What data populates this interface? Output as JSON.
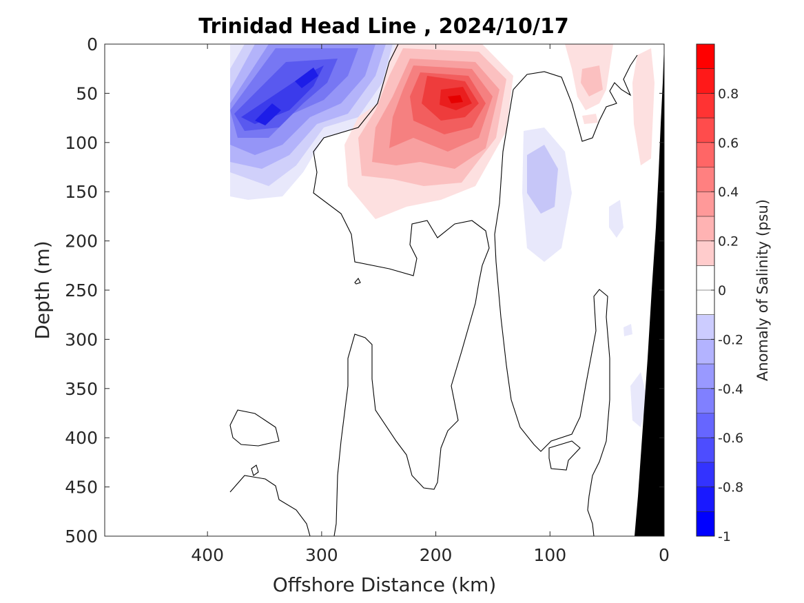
{
  "chart_data": {
    "type": "heatmap",
    "subtype": "filled-contour section",
    "title": "Trinidad Head Line , 2024/10/17",
    "xlabel": "Offshore Distance (km)",
    "ylabel": "Depth (m)",
    "xlim": [
      490,
      0
    ],
    "x_reversed": true,
    "ylim": [
      0,
      500
    ],
    "y_reversed": true,
    "xticks": [
      400,
      300,
      200,
      100,
      0
    ],
    "yticks": [
      0,
      50,
      100,
      150,
      200,
      250,
      300,
      350,
      400,
      450,
      500
    ],
    "colorbar": {
      "label": "Anomaly of Salinity (psu)",
      "range": [
        -1,
        1
      ],
      "levels": 20,
      "ticks": [
        -1,
        -0.8,
        -0.6,
        -0.4,
        -0.2,
        0,
        0.2,
        0.4,
        0.6,
        0.8
      ],
      "tick_labels": [
        "-1",
        "-0.8",
        "-0.6",
        "-0.4",
        "-0.2",
        "0",
        "0.2",
        "0.4",
        "0.6",
        "0.8"
      ],
      "colormap": "blue-white-red"
    },
    "features": [
      {
        "name": "fresh anomaly (offshore)",
        "center_km": 350,
        "center_depth_m": 75,
        "peak_value": -0.8
      },
      {
        "name": "fresh anomaly (near surface)",
        "center_km": 310,
        "center_depth_m": 30,
        "peak_value": -0.7
      },
      {
        "name": "salty anomaly core",
        "center_km": 185,
        "center_depth_m": 40,
        "peak_value": 0.9
      },
      {
        "name": "weak fresh anomaly",
        "center_km": 95,
        "center_depth_m": 80,
        "peak_value": -0.3
      },
      {
        "name": "weak salty anomaly (nearshore)",
        "center_km": 70,
        "center_depth_m": 30,
        "peak_value": 0.2
      }
    ],
    "land_mask": "bottom topography (black) near 0 km"
  },
  "colors": {
    "land": "#000000",
    "axis": "#262626",
    "contour": "#000000"
  }
}
